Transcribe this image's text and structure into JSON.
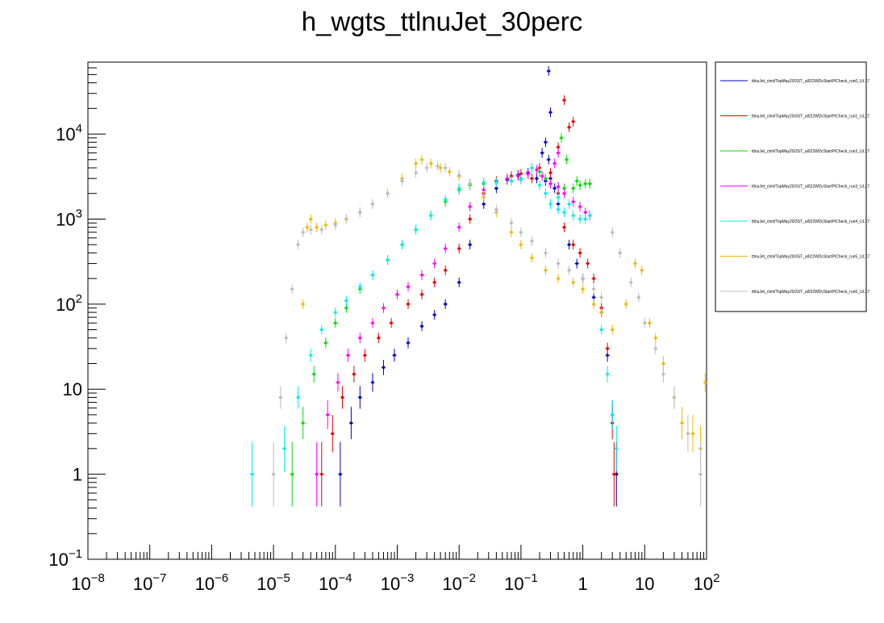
{
  "chart_data": {
    "type": "scatter",
    "title": "h_wgts_ttlnuJet_30perc",
    "xlabel": "",
    "ylabel": "",
    "x_scale": "log",
    "y_scale": "log",
    "xlim": [
      1e-08,
      100
    ],
    "ylim": [
      0.1,
      70000
    ],
    "grid": false,
    "legend_position": "right",
    "x_ticks": [
      {
        "value": 1e-08,
        "base": "10",
        "exp": "−8"
      },
      {
        "value": 1e-07,
        "base": "10",
        "exp": "−7"
      },
      {
        "value": 1e-06,
        "base": "10",
        "exp": "−6"
      },
      {
        "value": 1e-05,
        "base": "10",
        "exp": "−5"
      },
      {
        "value": 0.0001,
        "base": "10",
        "exp": "−4"
      },
      {
        "value": 0.001,
        "base": "10",
        "exp": "−3"
      },
      {
        "value": 0.01,
        "base": "10",
        "exp": "−2"
      },
      {
        "value": 0.1,
        "base": "10",
        "exp": "−1"
      },
      {
        "value": 1,
        "base": "1",
        "exp": ""
      },
      {
        "value": 10,
        "base": "10",
        "exp": ""
      },
      {
        "value": 100,
        "base": "10",
        "exp": "2"
      }
    ],
    "y_ticks": [
      {
        "value": 0.1,
        "base": "10",
        "exp": "−1"
      },
      {
        "value": 1,
        "base": "1",
        "exp": ""
      },
      {
        "value": 10,
        "base": "10",
        "exp": ""
      },
      {
        "value": 100,
        "base": "10",
        "exp": "2"
      },
      {
        "value": 1000,
        "base": "10",
        "exp": "3"
      },
      {
        "value": 10000,
        "base": "10",
        "exp": "4"
      }
    ],
    "series": [
      {
        "name": "ttlnuJet_ctml/TopMay20/3ST_al022WDcStartPICheck_run0_UL17",
        "color": "#0000cc",
        "points": [
          [
            0.00012,
            1.0
          ],
          [
            0.00018,
            4
          ],
          [
            0.00025,
            8
          ],
          [
            0.0004,
            12
          ],
          [
            0.0006,
            18
          ],
          [
            0.0009,
            25
          ],
          [
            0.0015,
            35
          ],
          [
            0.0025,
            55
          ],
          [
            0.004,
            75
          ],
          [
            0.006,
            100
          ],
          [
            0.01,
            180
          ],
          [
            0.015,
            500
          ],
          [
            0.025,
            1500
          ],
          [
            0.04,
            2300
          ],
          [
            0.06,
            2900
          ],
          [
            0.09,
            3300
          ],
          [
            0.13,
            3500
          ],
          [
            0.18,
            3000
          ],
          [
            0.25,
            2800
          ],
          [
            0.3,
            3000
          ],
          [
            0.35,
            2300
          ],
          [
            0.4,
            1500
          ],
          [
            0.6,
            500
          ],
          [
            0.8,
            300
          ],
          [
            1.0,
            200
          ],
          [
            1.5,
            120
          ],
          [
            2.0,
            80
          ],
          [
            2.5,
            25
          ],
          [
            3.0,
            5
          ],
          [
            3.5,
            1.0
          ],
          [
            0.28,
            55000
          ],
          [
            0.3,
            18000
          ],
          [
            0.22,
            6000
          ],
          [
            0.25,
            8000
          ],
          [
            0.28,
            5000
          ]
        ]
      },
      {
        "name": "ttlnuJet_ctml/TopMay20/3ST_al022WDcStartPICheck_run1_UL17",
        "color": "#ee0000",
        "points": [
          [
            6e-05,
            1.0
          ],
          [
            9e-05,
            3
          ],
          [
            0.00013,
            8
          ],
          [
            0.0002,
            15
          ],
          [
            0.0003,
            25
          ],
          [
            0.0005,
            40
          ],
          [
            0.0008,
            60
          ],
          [
            0.0015,
            100
          ],
          [
            0.0025,
            130
          ],
          [
            0.004,
            180
          ],
          [
            0.006,
            250
          ],
          [
            0.01,
            450
          ],
          [
            0.015,
            1000
          ],
          [
            0.025,
            2000
          ],
          [
            0.04,
            2800
          ],
          [
            0.07,
            3200
          ],
          [
            0.1,
            3400
          ],
          [
            0.15,
            3000
          ],
          [
            0.2,
            4000
          ],
          [
            0.3,
            3500
          ],
          [
            0.4,
            2000
          ],
          [
            0.5,
            800
          ],
          [
            0.7,
            500
          ],
          [
            0.9,
            400
          ],
          [
            1.2,
            300
          ],
          [
            1.5,
            200
          ],
          [
            2.0,
            90
          ],
          [
            2.5,
            30
          ],
          [
            3.0,
            4
          ],
          [
            3.2,
            1.0
          ],
          [
            0.5,
            25000
          ],
          [
            0.7,
            14000
          ],
          [
            0.4,
            7000
          ],
          [
            0.6,
            12000
          ]
        ]
      },
      {
        "name": "ttlnuJet_ctml/TopMay20/3ST_al022WDcStartPICheck_run2_UL17",
        "color": "#00dd00",
        "points": [
          [
            2e-05,
            1.0
          ],
          [
            3e-05,
            4
          ],
          [
            4.5e-05,
            15
          ],
          [
            7e-05,
            35
          ],
          [
            0.0001,
            60
          ],
          [
            0.00015,
            90
          ],
          [
            0.00025,
            150
          ],
          [
            0.0004,
            220
          ],
          [
            0.0007,
            330
          ],
          [
            0.0012,
            500
          ],
          [
            0.002,
            750
          ],
          [
            0.0035,
            1100
          ],
          [
            0.006,
            1600
          ],
          [
            0.01,
            2200
          ],
          [
            0.015,
            2500
          ],
          [
            0.025,
            2600
          ],
          [
            0.04,
            2700
          ],
          [
            0.07,
            2800
          ],
          [
            0.1,
            3000
          ],
          [
            0.15,
            4000
          ],
          [
            0.2,
            3600
          ],
          [
            0.25,
            3000
          ],
          [
            0.3,
            2600
          ],
          [
            0.4,
            2400
          ],
          [
            0.5,
            2300
          ],
          [
            0.7,
            2300
          ],
          [
            0.9,
            2500
          ],
          [
            1.1,
            2600
          ],
          [
            1.3,
            2600
          ],
          [
            0.45,
            9000
          ],
          [
            0.55,
            5000
          ],
          [
            0.8,
            2800
          ]
        ]
      },
      {
        "name": "ttlnuJet_ctml/TopMay20/3ST_al022WDcStartPICheck_run3_UL17",
        "color": "#ff00ff",
        "points": [
          [
            5e-05,
            1.0
          ],
          [
            7.5e-05,
            5
          ],
          [
            0.00011,
            12
          ],
          [
            0.00016,
            25
          ],
          [
            0.00025,
            40
          ],
          [
            0.0004,
            60
          ],
          [
            0.0006,
            90
          ],
          [
            0.001,
            130
          ],
          [
            0.0015,
            160
          ],
          [
            0.0025,
            220
          ],
          [
            0.004,
            300
          ],
          [
            0.006,
            450
          ],
          [
            0.01,
            800
          ],
          [
            0.015,
            1400
          ],
          [
            0.025,
            2200
          ],
          [
            0.04,
            2700
          ],
          [
            0.06,
            3000
          ],
          [
            0.09,
            3200
          ],
          [
            0.13,
            3400
          ],
          [
            0.18,
            3800
          ],
          [
            0.22,
            3200
          ],
          [
            0.3,
            2600
          ],
          [
            0.4,
            2400
          ],
          [
            0.5,
            2000
          ],
          [
            0.7,
            1600
          ],
          [
            0.9,
            1400
          ],
          [
            1.1,
            1200
          ],
          [
            1.3,
            1100
          ],
          [
            0.4,
            6000
          ],
          [
            0.35,
            4500
          ]
        ]
      },
      {
        "name": "ttlnuJet_ctml/TopMay20/3ST_al022WDcStartPICheck_run4_UL17",
        "color": "#00eeee",
        "points": [
          [
            4.5e-06,
            1.0
          ],
          [
            1.5e-05,
            2
          ],
          [
            2.5e-05,
            8
          ],
          [
            4e-05,
            25
          ],
          [
            6e-05,
            50
          ],
          [
            0.0001,
            80
          ],
          [
            0.00015,
            110
          ],
          [
            0.00025,
            160
          ],
          [
            0.0004,
            220
          ],
          [
            0.0007,
            330
          ],
          [
            0.0012,
            500
          ],
          [
            0.002,
            750
          ],
          [
            0.0035,
            1100
          ],
          [
            0.006,
            1700
          ],
          [
            0.01,
            2300
          ],
          [
            0.015,
            2600
          ],
          [
            0.025,
            2700
          ],
          [
            0.04,
            2700
          ],
          [
            0.07,
            2800
          ],
          [
            0.1,
            2900
          ],
          [
            0.15,
            4000
          ],
          [
            0.2,
            2500
          ],
          [
            0.25,
            2000
          ],
          [
            0.3,
            1500
          ],
          [
            0.4,
            1300
          ],
          [
            0.5,
            1200
          ],
          [
            0.7,
            1100
          ],
          [
            0.9,
            1000
          ],
          [
            1.1,
            1000
          ],
          [
            1.3,
            1100
          ],
          [
            0.4,
            1800
          ],
          [
            0.6,
            1500
          ],
          [
            2.0,
            50
          ],
          [
            2.5,
            15
          ],
          [
            3.0,
            5
          ],
          [
            3.5,
            2
          ]
        ]
      },
      {
        "name": "ttlnuJet_ctml/TopMay20/3ST_al022WDcStartPICheck_run5_UL17",
        "color": "#f0b800",
        "points": [
          [
            3e-05,
            100
          ],
          [
            3.5e-05,
            800
          ],
          [
            4e-05,
            1000
          ],
          [
            5e-05,
            800
          ],
          [
            7e-05,
            850
          ],
          [
            0.0001,
            900
          ],
          [
            0.00015,
            1000
          ],
          [
            0.00025,
            1200
          ],
          [
            0.0004,
            1500
          ],
          [
            0.0007,
            2000
          ],
          [
            0.0012,
            3000
          ],
          [
            0.002,
            4500
          ],
          [
            0.0025,
            5000
          ],
          [
            0.0035,
            4500
          ],
          [
            0.005,
            4000
          ],
          [
            0.007,
            3600
          ],
          [
            0.01,
            3200
          ],
          [
            0.015,
            2600
          ],
          [
            0.025,
            1800
          ],
          [
            0.04,
            1200
          ],
          [
            0.07,
            700
          ],
          [
            0.1,
            500
          ],
          [
            0.15,
            350
          ],
          [
            0.25,
            250
          ],
          [
            0.4,
            200
          ],
          [
            0.7,
            180
          ],
          [
            1.0,
            150
          ],
          [
            1.5,
            100
          ],
          [
            2.0,
            80
          ],
          [
            3.0,
            50
          ],
          [
            5.0,
            100
          ],
          [
            7.0,
            300
          ],
          [
            9.0,
            250
          ],
          [
            12.0,
            60
          ],
          [
            15.0,
            40
          ],
          [
            20.0,
            20
          ],
          [
            30.0,
            8
          ],
          [
            40.0,
            4
          ],
          [
            60.0,
            3
          ],
          [
            80.0,
            2
          ],
          [
            95.0,
            12
          ]
        ]
      },
      {
        "name": "ttlnuJet_ctml/TopMay20/3ST_al022WDcStartPICheck_run6_UL17",
        "color": "#bbbbbb",
        "points": [
          [
            1e-05,
            1.0
          ],
          [
            1.3e-05,
            8
          ],
          [
            1.6e-05,
            40
          ],
          [
            2e-05,
            150
          ],
          [
            2.5e-05,
            500
          ],
          [
            3e-05,
            700
          ],
          [
            4e-05,
            750
          ],
          [
            6e-05,
            750
          ],
          [
            0.0001,
            850
          ],
          [
            0.00015,
            1000
          ],
          [
            0.00025,
            1200
          ],
          [
            0.0004,
            1500
          ],
          [
            0.0007,
            2000
          ],
          [
            0.0012,
            2800
          ],
          [
            0.002,
            3500
          ],
          [
            0.003,
            4000
          ],
          [
            0.0045,
            4200
          ],
          [
            0.006,
            4000
          ],
          [
            0.01,
            3300
          ],
          [
            0.015,
            2600
          ],
          [
            0.025,
            1900
          ],
          [
            0.04,
            1300
          ],
          [
            0.07,
            900
          ],
          [
            0.1,
            700
          ],
          [
            0.15,
            550
          ],
          [
            0.25,
            400
          ],
          [
            0.4,
            300
          ],
          [
            0.6,
            250
          ],
          [
            1.0,
            200
          ],
          [
            1.5,
            150
          ],
          [
            2.0,
            120
          ],
          [
            3.0,
            700
          ],
          [
            4.0,
            400
          ],
          [
            6.0,
            180
          ],
          [
            8.0,
            120
          ],
          [
            10.0,
            60
          ],
          [
            15.0,
            30
          ],
          [
            20.0,
            15
          ],
          [
            30.0,
            8
          ],
          [
            50.0,
            3
          ],
          [
            80.0,
            1.0
          ]
        ]
      }
    ]
  }
}
